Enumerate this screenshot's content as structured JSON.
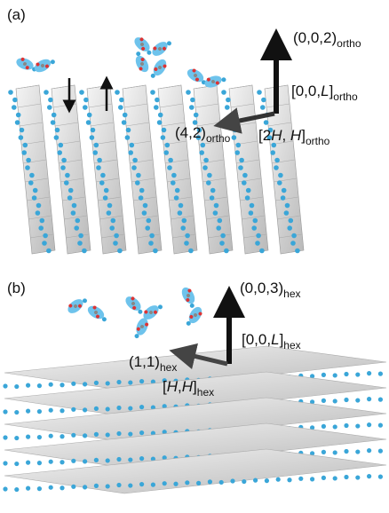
{
  "panels": [
    {
      "label": "(a)",
      "annotations": [
        {
          "parts": [
            "(0,0,2)"
          ],
          "sub": "ortho"
        },
        {
          "parts": [
            "[0,0,",
            "L",
            "]"
          ],
          "sub": "ortho"
        },
        {
          "parts": [
            "(4,2)"
          ],
          "sub": "ortho"
        },
        {
          "parts": [
            "[2",
            "H",
            ", ",
            "H",
            "]"
          ],
          "sub": "ortho"
        }
      ]
    },
    {
      "label": "(b)",
      "annotations": [
        {
          "parts": [
            "(0,0,3)"
          ],
          "sub": "hex"
        },
        {
          "parts": [
            "[0,0,",
            "L",
            "]"
          ],
          "sub": "hex"
        },
        {
          "parts": [
            "(1,1)"
          ],
          "sub": "hex"
        },
        {
          "parts": [
            "[",
            "H",
            ",",
            "H",
            "]"
          ],
          "sub": "hex"
        }
      ]
    }
  ]
}
